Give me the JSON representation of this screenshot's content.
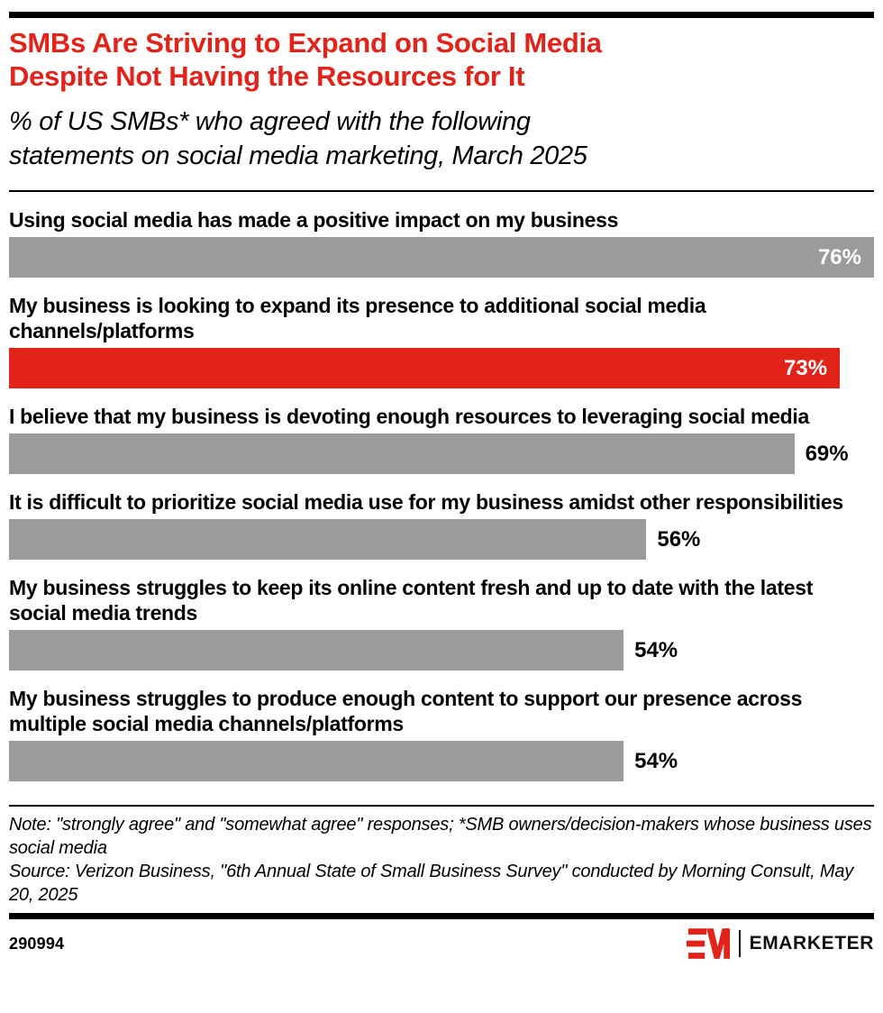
{
  "header": {
    "title_lines": [
      "SMBs Are Striving to Expand on Social Media",
      "Despite Not Having the Resources for It"
    ],
    "subtitle_lines": [
      "% of US SMBs* who agreed with the following",
      "statements on social media marketing, March 2025"
    ]
  },
  "chart_data": {
    "type": "bar",
    "orientation": "horizontal",
    "unit": "%",
    "scale_max": 76,
    "title": "SMBs Are Striving to Expand on Social Media Despite Not Having the Resources for It",
    "subtitle": "% of US SMBs* who agreed with the following statements on social media marketing, March 2025",
    "categories": [
      "Using social media has made a positive impact on my business",
      "My business is looking to expand its presence to additional social media channels/platforms",
      "I believe that my business is devoting enough resources to leveraging social media",
      "It is difficult to prioritize social media use for my business amidst other responsibilities",
      "My business struggles to keep its online content fresh and up to date with the latest social media trends",
      "My business struggles to produce enough content to support our presence across multiple social media channels/platforms"
    ],
    "values": [
      76,
      73,
      69,
      56,
      54,
      54
    ],
    "colors": {
      "bar_default": "#9B9B9B",
      "bar_highlight": "#E2231A",
      "title_accent": "#E2231A"
    },
    "items": [
      {
        "label": "Using social media has made a positive impact on my business",
        "value": 76,
        "value_label": "76%",
        "highlight": false,
        "value_inside": true
      },
      {
        "label": "My business is looking to expand its presence to additional social media channels/platforms",
        "value": 73,
        "value_label": "73%",
        "highlight": true,
        "value_inside": true
      },
      {
        "label": "I believe that my business is devoting enough resources to leveraging social media",
        "value": 69,
        "value_label": "69%",
        "highlight": false,
        "value_inside": false
      },
      {
        "label": "It is difficult to prioritize social media use for my business amidst other responsibilities",
        "value": 56,
        "value_label": "56%",
        "highlight": false,
        "value_inside": false
      },
      {
        "label": "My business struggles to keep its online content fresh and up to date with the latest social media trends",
        "value": 54,
        "value_label": "54%",
        "highlight": false,
        "value_inside": false
      },
      {
        "label": "My business struggles to produce enough content to support our presence across multiple social media channels/platforms",
        "value": 54,
        "value_label": "54%",
        "highlight": false,
        "value_inside": false
      }
    ]
  },
  "footer": {
    "note": "Note: \"strongly agree\" and \"somewhat agree\" responses; *SMB owners/decision-makers whose business uses social media",
    "source": "Source: Verizon Business, \"6th Annual State of Small Business Survey\" conducted by Morning Consult, May 20, 2025",
    "chart_id": "290994",
    "brand_name": "EMARKETER"
  }
}
